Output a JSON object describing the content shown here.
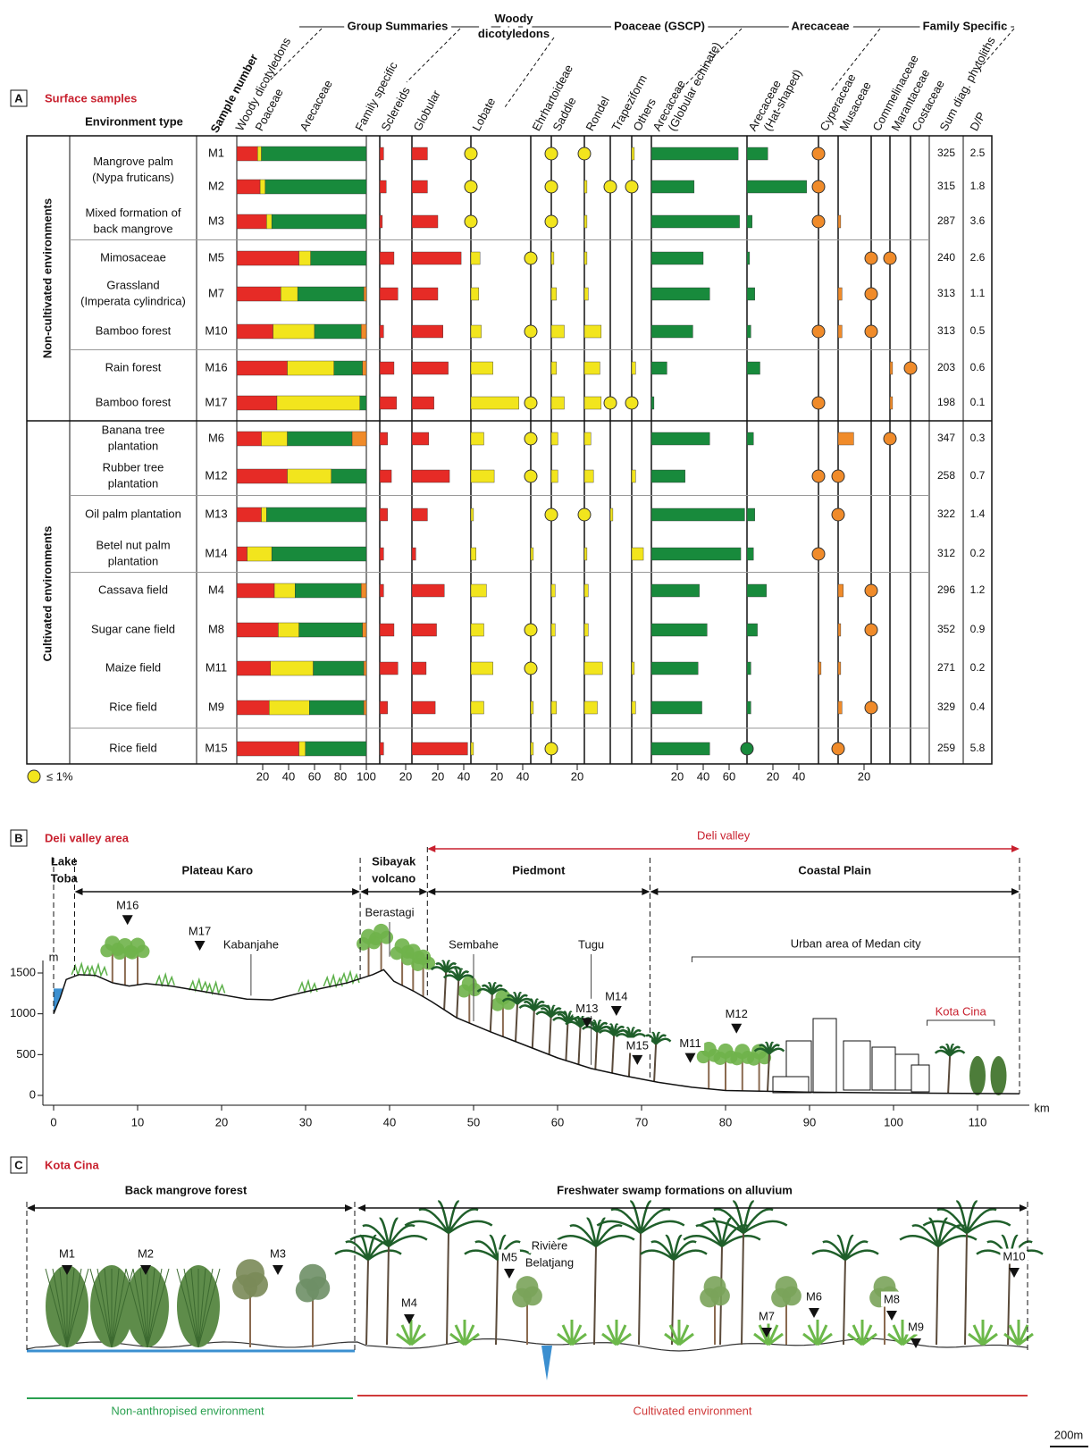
{
  "panel_a": {
    "letter": "A",
    "title": "Surface samples",
    "env_header": "Environment type",
    "sample_header": "Sample number",
    "legend": "≤ 1%",
    "threshold": 1,
    "groups": [
      [
        "Group Summaries"
      ],
      [
        "Woody",
        "dicotyledons"
      ],
      [
        "Poaceae (GSCP)"
      ],
      [
        "Arecaceae"
      ],
      [
        "Family Specific"
      ]
    ],
    "summary": {
      "labels": [
        "Woody dicotyledons",
        "Poaceae",
        "Arecaceae",
        "Family specific"
      ],
      "colors": [
        "#e62b26",
        "#f2e51d",
        "#188a3c",
        "#f08b2a"
      ],
      "ticks": [
        20,
        40,
        60,
        80,
        100
      ]
    },
    "columns": [
      {
        "label": [
          "Sclereids"
        ],
        "color": "#e62b26",
        "ticks": [
          20
        ]
      },
      {
        "label": [
          "Globular"
        ],
        "color": "#e62b26",
        "ticks": [
          20,
          40
        ]
      },
      {
        "label": [
          "Lobate"
        ],
        "color": "#f2e51d",
        "ticks": [
          20,
          40
        ]
      },
      {
        "label": [
          "Ehrhartoideae"
        ],
        "color": "#f2e51d",
        "ticks": []
      },
      {
        "label": [
          "Saddle"
        ],
        "color": "#f2e51d",
        "ticks": [
          20
        ]
      },
      {
        "label": [
          "Rondel"
        ],
        "color": "#f2e51d",
        "ticks": []
      },
      {
        "label": [
          "Trapeziform"
        ],
        "color": "#f2e51d",
        "ticks": []
      },
      {
        "label": [
          "Others"
        ],
        "color": "#f2e51d",
        "ticks": []
      },
      {
        "label": [
          "Arecaceae",
          "(Globular echinate)"
        ],
        "color": "#188a3c",
        "ticks": [
          20,
          40,
          60
        ]
      },
      {
        "label": [
          "Arecaceae",
          "(Hat-shaped)"
        ],
        "color": "#188a3c",
        "ticks": [
          20,
          40
        ]
      },
      {
        "label": [
          "Cyperaceae"
        ],
        "color": "#f08b2a",
        "ticks": []
      },
      {
        "label": [
          "Musaceae"
        ],
        "color": "#f08b2a",
        "ticks": [
          20
        ]
      },
      {
        "label": [
          "Commelinaceae"
        ],
        "color": "#f08b2a",
        "ticks": []
      },
      {
        "label": [
          "Marantaceae"
        ],
        "color": "#f08b2a",
        "ticks": []
      },
      {
        "label": [
          "Costaceae"
        ],
        "color": "#f08b2a",
        "ticks": []
      }
    ],
    "sum_header": "Sum diag. phytoliths",
    "dp_header": "D/P",
    "sections": [
      {
        "label": "Non-cultivated environments",
        "blocks": [
          {
            "rows": [
              {
                "sample": "M1",
                "env": [
                  "Mangrove palm",
                  "(Nypa fruticans)"
                ],
                "summary": [
                  16,
                  3,
                  81,
                  0
                ],
                "values": [
                  3,
                  12,
                  1,
                  0,
                  1,
                  1,
                  0,
                  2,
                  67,
                  16,
                  1,
                  0,
                  0,
                  0,
                  0
                ],
                "sum": 325,
                "dp": 2.5
              },
              {
                "sample": "M2",
                "env": null,
                "summary": [
                  18,
                  4,
                  78,
                  0
                ],
                "values": [
                  5,
                  12,
                  1,
                  0,
                  1,
                  2,
                  1,
                  1,
                  33,
                  46,
                  1,
                  0,
                  0,
                  0,
                  0
                ],
                "sum": 315,
                "dp": 1.8
              },
              {
                "sample": "M3",
                "env": [
                  "Mixed formation of",
                  "back mangrove"
                ],
                "summary": [
                  23,
                  4,
                  73,
                  0
                ],
                "values": [
                  2,
                  20,
                  1,
                  0,
                  1,
                  2,
                  0,
                  0,
                  68,
                  4,
                  1,
                  2,
                  0,
                  0,
                  0
                ],
                "sum": 287,
                "dp": 3.6
              }
            ]
          },
          {
            "rows": [
              {
                "sample": "M5",
                "env": [
                  "Mimosaceae"
                ],
                "summary": [
                  48,
                  9,
                  43,
                  0
                ],
                "values": [
                  11,
                  38,
                  7,
                  1,
                  2,
                  2,
                  0,
                  0,
                  40,
                  2,
                  0,
                  0,
                  1,
                  1,
                  0
                ],
                "sum": 240,
                "dp": 2.6
              },
              {
                "sample": "M7",
                "env": [
                  "Grassland",
                  "(Imperata cylindrica)"
                ],
                "summary": [
                  34,
                  13,
                  51,
                  2
                ],
                "values": [
                  14,
                  20,
                  6,
                  0,
                  4,
                  3,
                  0,
                  0,
                  45,
                  6,
                  0,
                  3,
                  1,
                  0,
                  0
                ],
                "sum": 313,
                "dp": 1.1
              },
              {
                "sample": "M10",
                "env": [
                  "Bamboo forest"
                ],
                "summary": [
                  28,
                  32,
                  36,
                  4
                ],
                "values": [
                  3,
                  24,
                  8,
                  1,
                  10,
                  13,
                  0,
                  0,
                  32,
                  3,
                  1,
                  3,
                  1,
                  0,
                  0
                ],
                "sum": 313,
                "dp": 0.5
              }
            ]
          },
          {
            "rows": [
              {
                "sample": "M16",
                "env": [
                  "Rain forest"
                ],
                "summary": [
                  39,
                  36,
                  22,
                  3
                ],
                "values": [
                  11,
                  28,
                  17,
                  0,
                  4,
                  12,
                  0,
                  3,
                  12,
                  10,
                  0,
                  0,
                  0,
                  2,
                  1
                ],
                "sum": 203,
                "dp": 0.6
              },
              {
                "sample": "M17",
                "env": [
                  "Bamboo forest"
                ],
                "summary": [
                  31,
                  64,
                  5,
                  0
                ],
                "values": [
                  13,
                  17,
                  37,
                  1,
                  10,
                  13,
                  1,
                  1,
                  2,
                  0,
                  1,
                  0,
                  0,
                  2,
                  0
                ],
                "sum": 198,
                "dp": 0.1
              }
            ]
          }
        ]
      },
      {
        "label": "Cultivated environments",
        "blocks": [
          {
            "rows": [
              {
                "sample": "M6",
                "env": [
                  "Banana tree",
                  "plantation"
                ],
                "summary": [
                  19,
                  20,
                  50,
                  11
                ],
                "values": [
                  6,
                  13,
                  10,
                  1,
                  5,
                  5,
                  0,
                  0,
                  45,
                  5,
                  0,
                  12,
                  0,
                  1,
                  0
                ],
                "sum": 347,
                "dp": 0.3
              },
              {
                "sample": "M12",
                "env": [
                  "Rubber tree",
                  "plantation"
                ],
                "summary": [
                  39,
                  34,
                  27,
                  0
                ],
                "values": [
                  9,
                  29,
                  18,
                  1,
                  5,
                  7,
                  0,
                  3,
                  26,
                  0,
                  1,
                  1,
                  0,
                  0,
                  0
                ],
                "sum": 258,
                "dp": 0.7
              }
            ]
          },
          {
            "rows": [
              {
                "sample": "M13",
                "env": [
                  "Oil palm plantation"
                ],
                "summary": [
                  19,
                  4,
                  77,
                  0
                ],
                "values": [
                  6,
                  12,
                  2,
                  0,
                  1,
                  1,
                  2,
                  0,
                  72,
                  6,
                  0,
                  1,
                  0,
                  0,
                  0
                ],
                "sum": 322,
                "dp": 1.4
              },
              {
                "sample": "M14",
                "env": [
                  "Betel nut palm",
                  "plantation"
                ],
                "summary": [
                  8,
                  19,
                  73,
                  0
                ],
                "values": [
                  3,
                  3,
                  4,
                  2,
                  0,
                  2,
                  0,
                  9,
                  69,
                  5,
                  1,
                  0,
                  0,
                  0,
                  0
                ],
                "sum": 312,
                "dp": 0.2
              }
            ]
          },
          {
            "rows": [
              {
                "sample": "M4",
                "env": [
                  "Cassava field"
                ],
                "summary": [
                  29,
                  16,
                  51,
                  4
                ],
                "values": [
                  3,
                  25,
                  12,
                  0,
                  3,
                  3,
                  0,
                  0,
                  37,
                  15,
                  0,
                  4,
                  1,
                  0,
                  0
                ],
                "sum": 296,
                "dp": 1.2
              },
              {
                "sample": "M8",
                "env": [
                  "Sugar cane field"
                ],
                "summary": [
                  32,
                  16,
                  49,
                  3
                ],
                "values": [
                  11,
                  19,
                  10,
                  1,
                  3,
                  3,
                  0,
                  0,
                  43,
                  8,
                  0,
                  2,
                  1,
                  0,
                  0
                ],
                "sum": 352,
                "dp": 0.9
              },
              {
                "sample": "M11",
                "env": [
                  "Maize field"
                ],
                "summary": [
                  26,
                  33,
                  39,
                  2
                ],
                "values": [
                  14,
                  11,
                  17,
                  1,
                  0,
                  14,
                  0,
                  2,
                  36,
                  3,
                  2,
                  2,
                  0,
                  0,
                  0
                ],
                "sum": 271,
                "dp": 0.2
              },
              {
                "sample": "M9",
                "env": [
                  "Rice field"
                ],
                "summary": [
                  25,
                  31,
                  42,
                  2
                ],
                "values": [
                  6,
                  18,
                  10,
                  2,
                  4,
                  10,
                  0,
                  3,
                  39,
                  3,
                  0,
                  3,
                  1,
                  0,
                  0
                ],
                "sum": 329,
                "dp": 0.4
              }
            ]
          },
          {
            "rows": [
              {
                "sample": "M15",
                "env": [
                  "Rice field"
                ],
                "summary": [
                  48,
                  5,
                  47,
                  0
                ],
                "values": [
                  3,
                  43,
                  2,
                  2,
                  1,
                  0,
                  0,
                  0,
                  45,
                  1,
                  0,
                  1,
                  0,
                  0,
                  0
                ],
                "sum": 259,
                "dp": 5.8
              }
            ]
          }
        ]
      }
    ]
  },
  "panel_b": {
    "letter": "B",
    "title": "Deli valley area",
    "y_unit": "m",
    "x_unit": "km",
    "xlim": [
      0,
      115
    ],
    "ylim": [
      0,
      1500
    ],
    "xticks": [
      0,
      10,
      20,
      30,
      40,
      50,
      60,
      70,
      80,
      90,
      100,
      110
    ],
    "yticks": [
      0,
      500,
      1000,
      1500
    ],
    "regions": [
      {
        "label": [
          "Lake",
          "Toba"
        ],
        "from": 0,
        "to": 2.5
      },
      {
        "label": [
          "Plateau Karo"
        ],
        "from": 2.5,
        "to": 36.5
      },
      {
        "label": [
          "Sibayak",
          "volcano"
        ],
        "from": 36.5,
        "to": 44.5
      },
      {
        "label": [
          "Piedmont"
        ],
        "from": 44.5,
        "to": 71
      },
      {
        "label": [
          "Coastal Plain"
        ],
        "from": 71,
        "to": 115
      }
    ],
    "valley": {
      "label": "Deli valley",
      "from": 44.5,
      "to": 115
    },
    "profile": {
      "km": [
        0,
        0.8,
        1.5,
        3,
        5,
        7,
        9,
        11,
        14,
        18,
        23,
        26,
        30,
        35,
        38,
        39.3,
        40.5,
        43,
        45,
        48,
        52,
        56,
        60,
        64,
        68,
        72,
        76,
        80,
        90,
        100,
        115
      ],
      "elevation": [
        1000,
        1200,
        1420,
        1480,
        1470,
        1380,
        1340,
        1370,
        1340,
        1270,
        1180,
        1170,
        1270,
        1380,
        1480,
        1540,
        1400,
        1270,
        1150,
        950,
        780,
        620,
        460,
        330,
        240,
        160,
        100,
        60,
        40,
        30,
        20
      ]
    },
    "samples": [
      {
        "name": "M16",
        "km": 8.8
      },
      {
        "name": "M17",
        "km": 17.4
      },
      {
        "name": "M13",
        "km": 63.5
      },
      {
        "name": "M14",
        "km": 67
      },
      {
        "name": "M15",
        "km": 69.5
      },
      {
        "name": "M11",
        "km": 75.8
      },
      {
        "name": "M12",
        "km": 81.3
      }
    ],
    "places": [
      {
        "label": "Kabanjahe",
        "km": 23.5
      },
      {
        "label": "Berastagi",
        "km": 40
      },
      {
        "label": "Sembahe",
        "km": 50
      },
      {
        "label": "Tugu",
        "km": 64
      }
    ],
    "urban": {
      "label": "Urban area of Medan city",
      "from": 76,
      "to": 115
    },
    "site": {
      "label": "Kota Cina",
      "from": 104,
      "to": 112
    }
  },
  "panel_c": {
    "letter": "C",
    "title": "Kota Cina",
    "regions": [
      "Back mangrove forest",
      "Freshwater swamp formations on alluvium"
    ],
    "samples": [
      "M1",
      "M2",
      "M3",
      "M4",
      "M5",
      "M7",
      "M6",
      "M8",
      "M9",
      "M10"
    ],
    "river": [
      "Rivière",
      "Belatjang"
    ],
    "environments": [
      "Non-anthropised environment",
      "Cultivated environment"
    ],
    "scale": "200m"
  }
}
